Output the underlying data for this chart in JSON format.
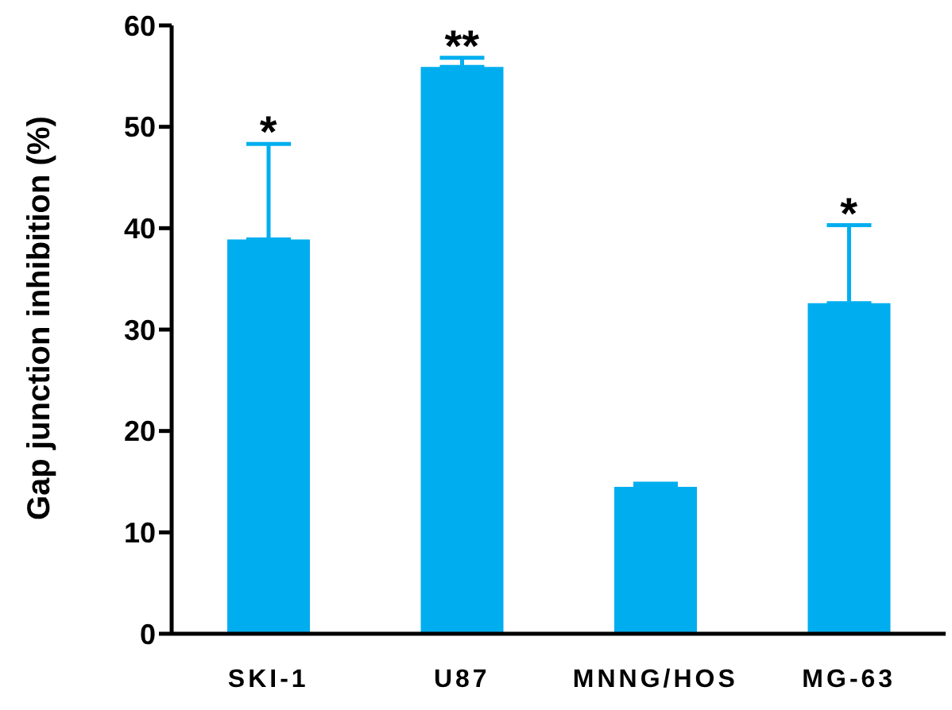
{
  "chart_data": {
    "type": "bar",
    "ylabel": "Gap junction inhibition (%)",
    "categories": [
      "SKI-1",
      "U87",
      "MNNG/HOS",
      "MG-63"
    ],
    "values": [
      38.9,
      55.9,
      14.5,
      32.6
    ],
    "errors": [
      [
        38.9,
        48.3
      ],
      [
        55.9,
        56.8
      ],
      [
        14.5,
        14.8
      ],
      [
        32.6,
        40.3
      ]
    ],
    "color": "#00aeef",
    "ylim": [
      0,
      60
    ],
    "yticks": [
      0,
      10,
      20,
      30,
      40,
      50,
      60
    ],
    "grid": false,
    "annotations": [
      {
        "text": "*",
        "x": "SKI-1",
        "y": 48.3
      },
      {
        "text": "**",
        "x": "U87",
        "y": 56.8
      },
      {
        "text": "*",
        "x": "MG-63",
        "y": 40.3
      }
    ]
  }
}
